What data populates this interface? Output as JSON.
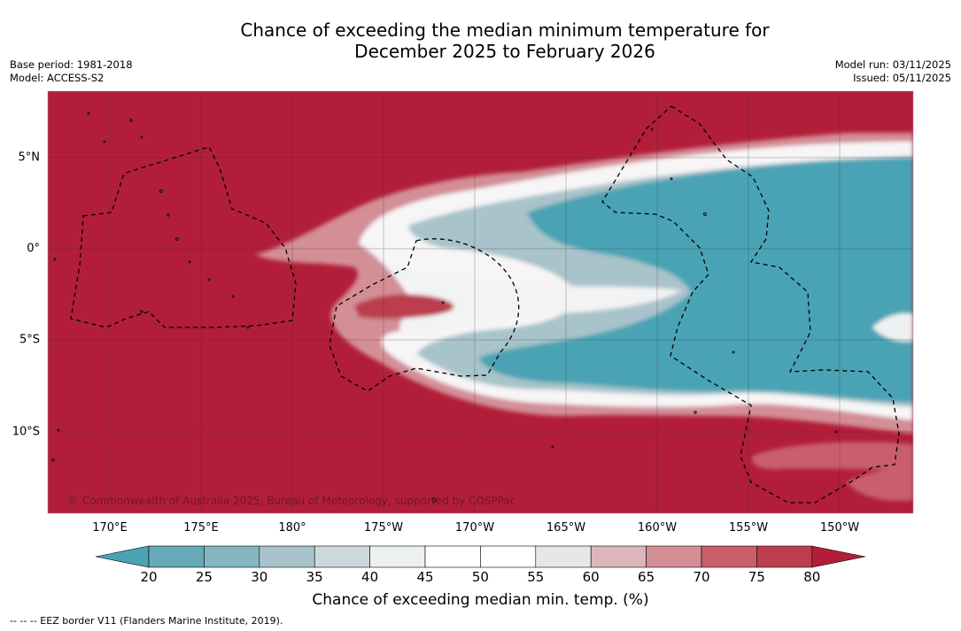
{
  "title": {
    "line1": "Chance of exceeding the median minimum temperature for",
    "line2": "December 2025 to February 2026"
  },
  "meta": {
    "base_period": "Base period: 1981-2018",
    "model": "Model: ACCESS-S2",
    "model_run": "Model run: 03/11/2025",
    "issued": "Issued: 05/11/2025"
  },
  "map": {
    "lon_labels": [
      "170°E",
      "175°E",
      "180°",
      "175°W",
      "170°W",
      "165°W",
      "160°W",
      "155°W",
      "150°W"
    ],
    "lat_labels": [
      "5°N",
      "0°",
      "5°S",
      "10°S"
    ],
    "copyright": "© Commonwealth of Australia 2025, Bureau of Meteorology, supported by COSPPac"
  },
  "colorbar": {
    "labels": [
      "20",
      "25",
      "30",
      "35",
      "40",
      "45",
      "50",
      "55",
      "60",
      "65",
      "70",
      "75",
      "80"
    ],
    "colors": [
      "#4aa3b4",
      "#66a9b8",
      "#85b6c2",
      "#a8c3ca",
      "#ccd9dc",
      "#ecf0f1",
      "#ffffff",
      "#ffffff",
      "#e8e6e7",
      "#ddb6bb",
      "#d38e96",
      "#c95f6c",
      "#bc3e4d",
      "#b21e39"
    ],
    "title": "Chance of exceeding median min. temp. (%)"
  },
  "legend": {
    "eez": "--  --  -- EEZ border V11 (Flanders Marine Institute, 2019)."
  }
}
